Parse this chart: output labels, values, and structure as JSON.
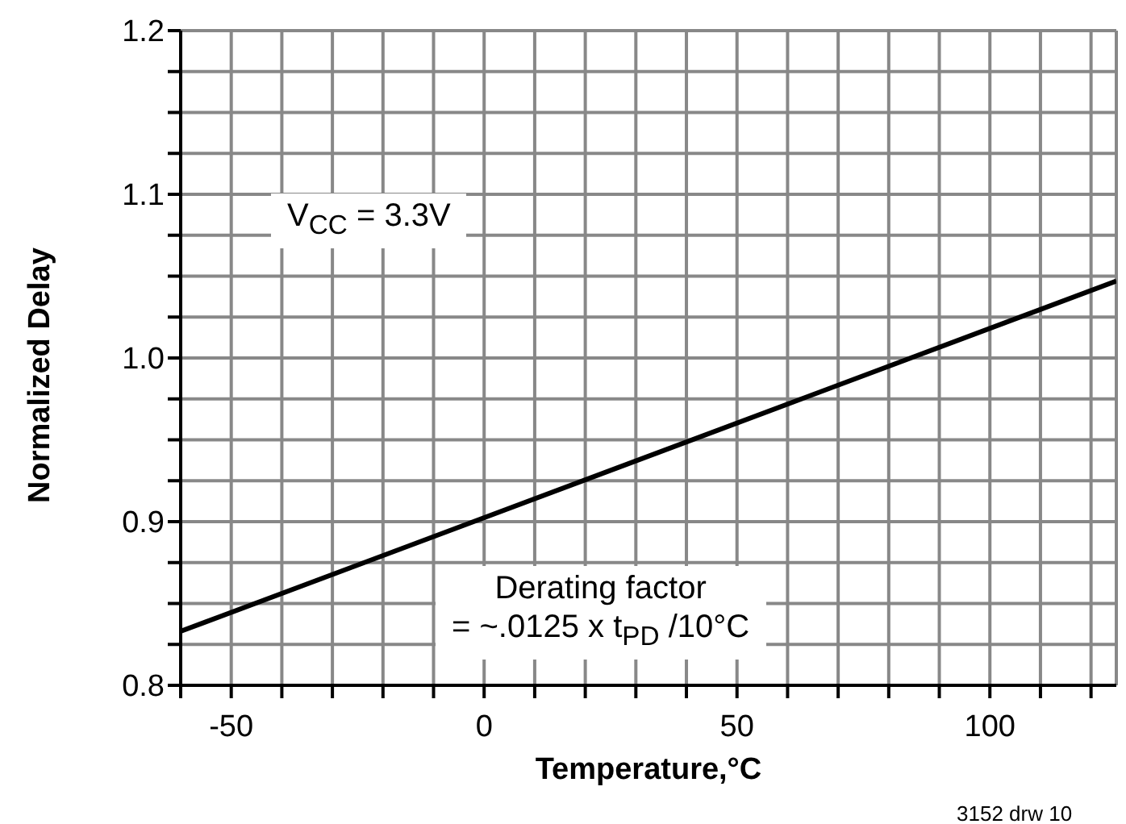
{
  "chart_data": {
    "type": "line",
    "xlabel": "Temperature,°C",
    "ylabel": "Normalized Delay",
    "x": [
      -60,
      125
    ],
    "series": [
      {
        "color": "#000000",
        "values": [
          0.833,
          1.047
        ]
      }
    ],
    "xlim": [
      -60,
      125
    ],
    "xticks": [
      {
        "value": -60,
        "label": null
      },
      {
        "value": -50,
        "label": "-50"
      },
      {
        "value": -40,
        "label": null
      },
      {
        "value": -30,
        "label": null
      },
      {
        "value": -20,
        "label": null
      },
      {
        "value": -10,
        "label": null
      },
      0,
      {
        "value": 10,
        "label": null
      },
      {
        "value": 20,
        "label": null
      },
      {
        "value": 30,
        "label": null
      },
      {
        "value": 40,
        "label": null
      },
      50,
      {
        "value": 60,
        "label": null
      },
      {
        "value": 70,
        "label": null
      },
      {
        "value": 80,
        "label": null
      },
      {
        "value": 90,
        "label": null
      },
      100,
      {
        "value": 110,
        "label": null
      },
      {
        "value": 120,
        "label": null
      }
    ],
    "ylim": [
      0.8,
      1.2
    ],
    "yticks": [
      0.8,
      {
        "value": 0.825,
        "label": null
      },
      {
        "value": 0.85,
        "label": null
      },
      {
        "value": 0.875,
        "label": null
      },
      0.9,
      {
        "value": 0.925,
        "label": null
      },
      {
        "value": 0.95,
        "label": null
      },
      {
        "value": 0.975,
        "label": null
      },
      {
        "value": 1,
        "label": "1.0"
      },
      {
        "value": 1.025,
        "label": null
      },
      {
        "value": 1.05,
        "label": null
      },
      {
        "value": 1.075,
        "label": null
      },
      1.1,
      {
        "value": 1.125,
        "label": null
      },
      {
        "value": 1.15,
        "label": null
      },
      {
        "value": 1.175,
        "label": null
      },
      1.2
    ],
    "grid": true,
    "marker": "none",
    "line_style": "solid",
    "annotations": [
      "V$_{CC}$ = 3.3V",
      "Derating factor\n= ~.0125 x t$_{PD}$ /10°C",
      "3152 drw 10"
    ]
  }
}
